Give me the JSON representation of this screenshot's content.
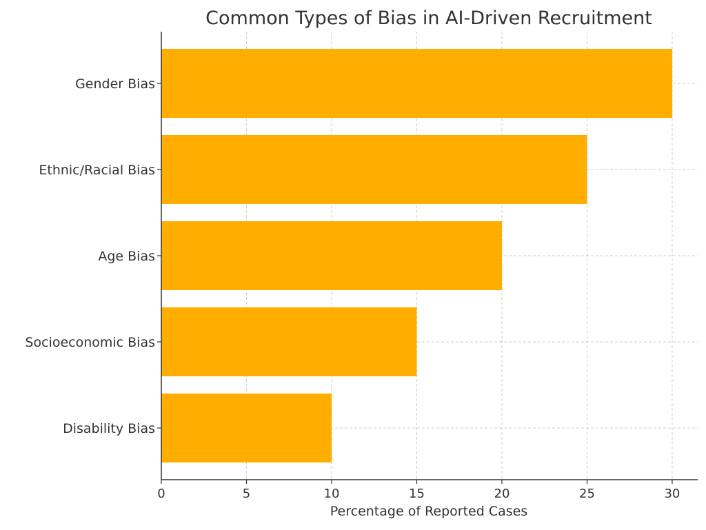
{
  "chart_data": {
    "type": "bar",
    "orientation": "horizontal",
    "title": "Common Types of Bias in AI-Driven Recruitment",
    "xlabel": "Percentage of Reported Cases",
    "ylabel": "",
    "categories": [
      "Gender Bias",
      "Ethnic/Racial Bias",
      "Age Bias",
      "Socioeconomic Bias",
      "Disability Bias"
    ],
    "values": [
      30,
      25,
      20,
      15,
      10
    ],
    "xlim": [
      0,
      31.5
    ],
    "xticks": [
      0,
      5,
      10,
      15,
      20,
      25,
      30
    ],
    "grid": true,
    "legend": "none",
    "bar_color": "#FFAE00",
    "grid_color": "#cccccc",
    "axis_color": "#333333"
  }
}
